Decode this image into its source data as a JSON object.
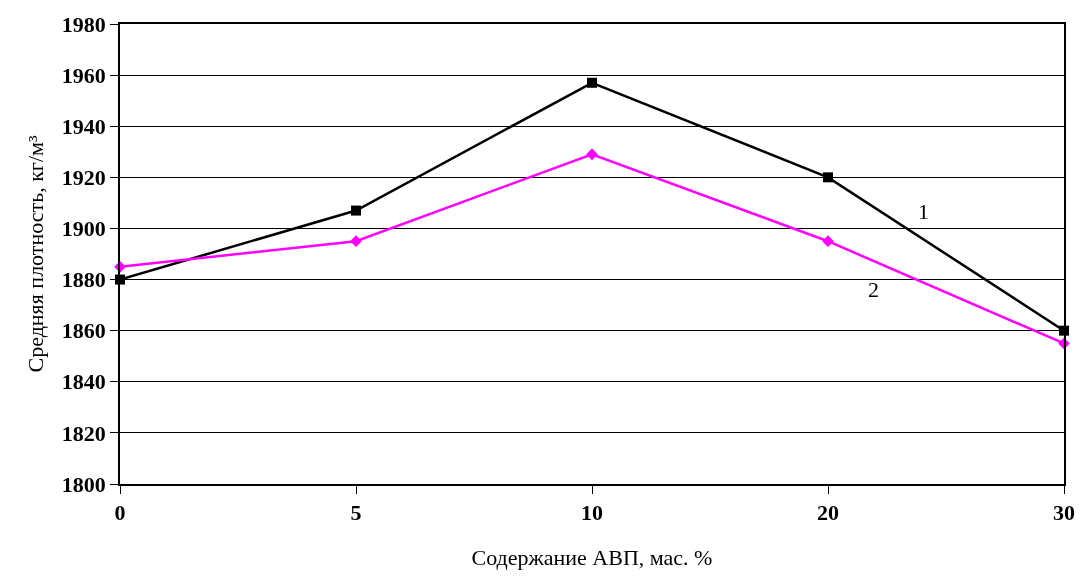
{
  "chart_data": {
    "type": "line",
    "xlabel": "Содержание АВП, мас. %",
    "ylabel": "Средняя плотность, кг/м³",
    "categories": [
      "0",
      "5",
      "10",
      "20",
      "30"
    ],
    "series": [
      {
        "name": "1",
        "color": "#000000",
        "marker": "square",
        "values": [
          1880,
          1907,
          1957,
          1920,
          1860
        ]
      },
      {
        "name": "2",
        "color": "#ff00ff",
        "marker": "diamond",
        "values": [
          1885,
          1895,
          1929,
          1895,
          1855
        ]
      }
    ],
    "ylim": [
      1800,
      1980
    ],
    "yticks": [
      1800,
      1820,
      1840,
      1860,
      1880,
      1900,
      1920,
      1940,
      1960,
      1980
    ],
    "grid": "y",
    "legend": false,
    "line_style": "solid"
  }
}
